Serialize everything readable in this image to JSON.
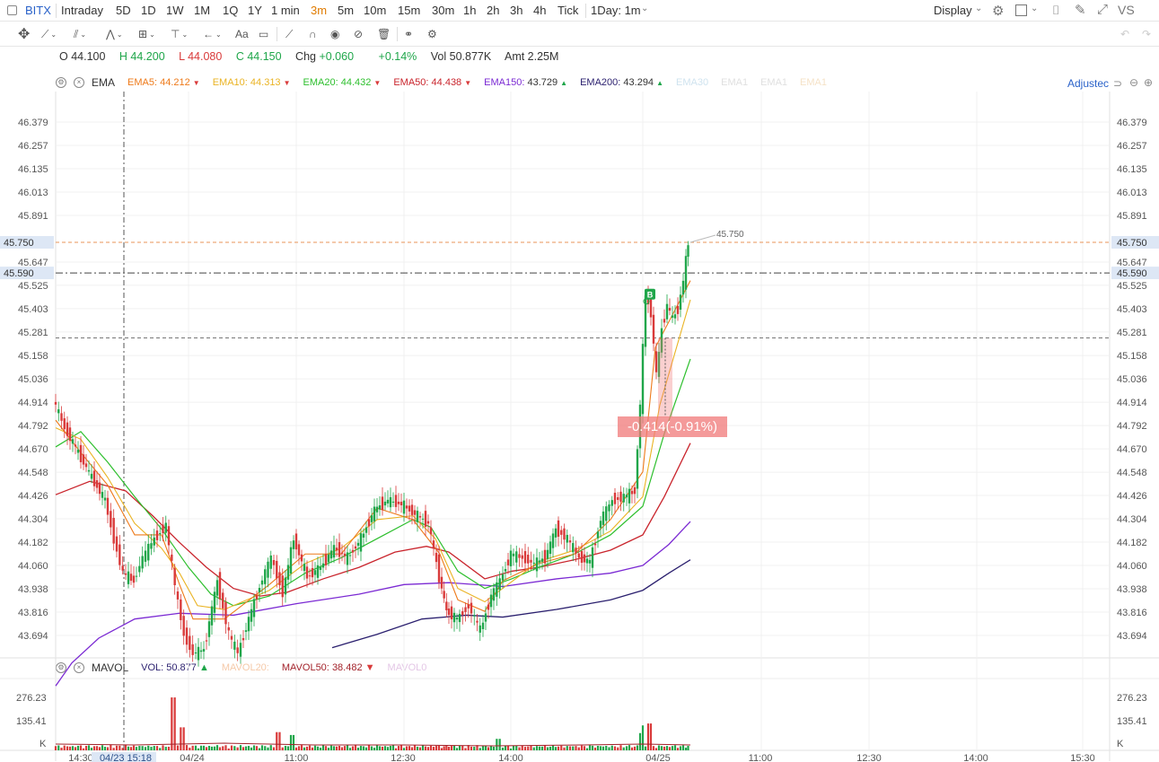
{
  "header": {
    "symbol": "BITX",
    "timeframes": [
      "Intraday",
      "5D",
      "1D",
      "1W",
      "1M",
      "1Q",
      "1Y",
      "1 min",
      "3m",
      "5m",
      "10m",
      "15m",
      "30m",
      "1h",
      "2h",
      "3h",
      "4h",
      "Tick"
    ],
    "active_timeframe": "3m",
    "period_select": "1Day: 1m",
    "display_label": "Display",
    "vs_label": "VS"
  },
  "toolbar": {
    "text_tool": "Aa"
  },
  "ohlc": {
    "o": "O 44.100",
    "h": "H 44.200",
    "l": "L 44.080",
    "c": "C 44.150",
    "chg": "Chg +0.060",
    "pct": "+0.14%",
    "vol": "Vol 50.877K",
    "amt": "Amt 2.25M"
  },
  "ema_legend": {
    "name": "EMA",
    "items": [
      {
        "label": "EMA5:",
        "value": "44.212",
        "color": "#ee7a1a",
        "dir": "▼"
      },
      {
        "label": "EMA10:",
        "value": "44.313",
        "color": "#eab323",
        "dir": "▼"
      },
      {
        "label": "EMA20:",
        "value": "44.432",
        "color": "#2dbf2d",
        "dir": "▼"
      },
      {
        "label": "EMA50:",
        "value": "44.438",
        "color": "#c9242c",
        "dir": "▼"
      },
      {
        "label": "EMA150:",
        "value": "43.729",
        "color": "#7b2ad3",
        "dir": "▲"
      },
      {
        "label": "EMA200:",
        "value": "43.294",
        "color": "#2a1f6e",
        "dir": "▲"
      }
    ],
    "faded": [
      "EMA30",
      "EMA1",
      "EMA1",
      "EMA1"
    ],
    "adjusted": "Adjustec"
  },
  "vol_legend": {
    "name": "MAVOL",
    "vol_label": "VOL:",
    "vol_value": "50.877",
    "vol_dir": "▲",
    "mavol20": "MAVOL20:",
    "mavol50_label": "MAVOL50:",
    "mavol50_value": "38.482",
    "mavol50_dir": "▼",
    "mavol0": "MAVOL0"
  },
  "price_axis": [
    "46.379",
    "46.257",
    "46.135",
    "46.013",
    "45.891",
    "45.647",
    "45.525",
    "45.403",
    "45.281",
    "45.158",
    "45.036",
    "44.914",
    "44.792",
    "44.670",
    "44.548",
    "44.426",
    "44.304",
    "44.182",
    "44.060",
    "43.938",
    "43.816",
    "43.694"
  ],
  "vol_axis": [
    "276.23",
    "135.41",
    "K"
  ],
  "time_axis": [
    "14:30",
    "04/23 15:18",
    "04/24",
    "11:00",
    "12:30",
    "14:00",
    "04/25",
    "11:00",
    "12:30",
    "14:00",
    "15:30"
  ],
  "markers": {
    "last_price": "45.750",
    "crosshair_price": "45.590",
    "change_label": "-0.414(-0.91%)",
    "buy_marker": "B",
    "high_annotation": "45.750"
  },
  "colors": {
    "up": "#1fa64a",
    "down": "#d93a3a",
    "accent": "#2a62c9",
    "active_tf": "#e07b00"
  }
}
